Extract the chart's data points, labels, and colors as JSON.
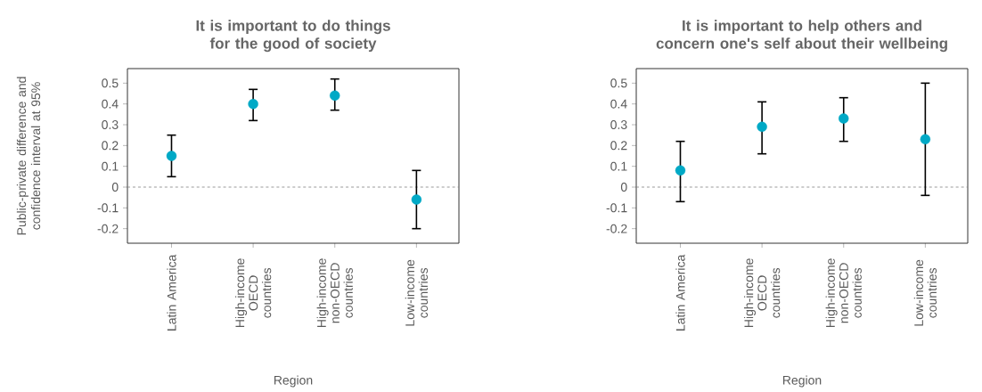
{
  "chart_data": [
    {
      "type": "scatter",
      "title": "It is important to do things for the good of society",
      "xlabel": "Region",
      "ylabel": "Public-private difference and confidence interval at 95%",
      "categories": [
        "Latin America",
        "High-income OECD countries",
        "High-income non-OECD countries",
        "Low-income countries"
      ],
      "values": [
        0.15,
        0.4,
        0.44,
        -0.06
      ],
      "errors": [
        [
          0.05,
          0.25
        ],
        [
          0.32,
          0.47
        ],
        [
          0.37,
          0.52
        ],
        [
          -0.2,
          0.08
        ]
      ],
      "color": "#00a9c6",
      "marker": "circle",
      "ylim": [
        -0.27,
        0.57
      ],
      "yticks": [
        -0.2,
        -0.1,
        0,
        0.1,
        0.2,
        0.3,
        0.4,
        0.5
      ],
      "ref_lines": [
        {
          "axis": "y",
          "value": 0,
          "color": "#808080",
          "line_style": "dashed"
        }
      ]
    },
    {
      "type": "scatter",
      "title": "It is important to help others and concern one's self about their wellbeing",
      "xlabel": "Region",
      "categories": [
        "Latin America",
        "High-income OECD countries",
        "High-income non-OECD countries",
        "Low-income countries"
      ],
      "values": [
        0.08,
        0.29,
        0.33,
        0.23
      ],
      "errors": [
        [
          -0.07,
          0.22
        ],
        [
          0.16,
          0.41
        ],
        [
          0.22,
          0.43
        ],
        [
          -0.04,
          0.5
        ]
      ],
      "color": "#00a9c6",
      "marker": "circle",
      "ylim": [
        -0.27,
        0.57
      ],
      "yticks": [
        -0.2,
        -0.1,
        0,
        0.1,
        0.2,
        0.3,
        0.4,
        0.5
      ],
      "ref_lines": [
        {
          "axis": "y",
          "value": 0,
          "color": "#808080",
          "line_style": "dashed"
        }
      ]
    }
  ]
}
